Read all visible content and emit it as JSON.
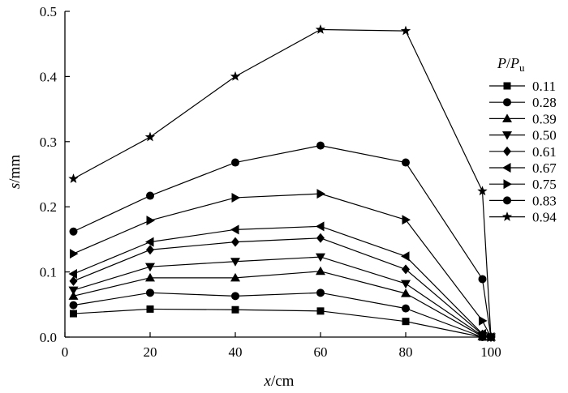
{
  "chart_data": {
    "type": "line",
    "title": "",
    "xlabel_var": "x",
    "xlabel_unit": "/cm",
    "ylabel_var": "s",
    "ylabel_unit": "/mm",
    "xlim": [
      0,
      100
    ],
    "ylim": [
      0,
      0.5
    ],
    "x_ticks": [
      0,
      20,
      40,
      60,
      80,
      100
    ],
    "x_tick_labels": [
      "0",
      "20",
      "40",
      "60",
      "80",
      "100"
    ],
    "y_ticks": [
      0,
      0.1,
      0.2,
      0.3,
      0.4,
      0.5
    ],
    "y_tick_labels": [
      "0.0",
      "0.1",
      "0.2",
      "0.3",
      "0.4",
      "0.5"
    ],
    "grid": false,
    "legend": {
      "title_main": "P",
      "title_sep": "/",
      "title_sub_base": "P",
      "title_sub": "u",
      "placement": "right"
    },
    "x": [
      2,
      20,
      40,
      60,
      80,
      98,
      100
    ],
    "series": [
      {
        "name": "0.11",
        "marker": "square",
        "values": [
          0.036,
          0.043,
          0.042,
          0.04,
          0.024,
          0.0,
          0.0
        ]
      },
      {
        "name": "0.28",
        "marker": "circle",
        "values": [
          0.049,
          0.068,
          0.063,
          0.068,
          0.044,
          0.0,
          0.0
        ]
      },
      {
        "name": "0.39",
        "marker": "triangle-up",
        "values": [
          0.063,
          0.091,
          0.091,
          0.101,
          0.067,
          0.001,
          0.0
        ]
      },
      {
        "name": "0.50",
        "marker": "triangle-down",
        "values": [
          0.072,
          0.108,
          0.116,
          0.123,
          0.082,
          0.002,
          0.0
        ]
      },
      {
        "name": "0.61",
        "marker": "diamond",
        "values": [
          0.086,
          0.134,
          0.146,
          0.152,
          0.104,
          0.004,
          0.0
        ]
      },
      {
        "name": "0.67",
        "marker": "triangle-left",
        "values": [
          0.097,
          0.146,
          0.165,
          0.17,
          0.124,
          0.005,
          0.0
        ]
      },
      {
        "name": "0.75",
        "marker": "triangle-right",
        "values": [
          0.128,
          0.179,
          0.214,
          0.22,
          0.18,
          0.025,
          0.0
        ]
      },
      {
        "name": "0.83",
        "marker": "circle",
        "values": [
          0.162,
          0.217,
          0.268,
          0.294,
          0.268,
          0.089,
          0.0
        ]
      },
      {
        "name": "0.94",
        "marker": "star",
        "values": [
          0.243,
          0.307,
          0.4,
          0.472,
          0.47,
          0.224,
          0.0
        ]
      }
    ]
  }
}
